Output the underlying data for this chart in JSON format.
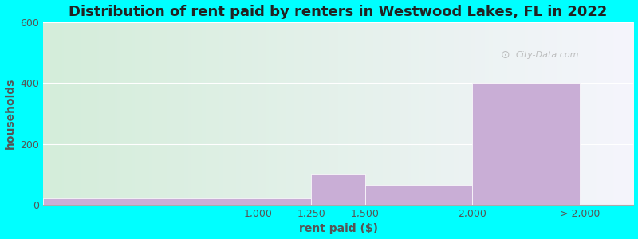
{
  "title": "Distribution of rent paid by renters in Westwood Lakes, FL in 2022",
  "xlabel": "rent paid ($)",
  "ylabel": "households",
  "bar_values": [
    20,
    20,
    100,
    65,
    400
  ],
  "bar_lefts": [
    0,
    1000,
    1250,
    1500,
    2000
  ],
  "bar_widths": [
    1000,
    250,
    250,
    500,
    500
  ],
  "bar_color": "#c9aed6",
  "xtick_positions": [
    1000,
    1250,
    1500,
    2000,
    2500
  ],
  "xtick_labels": [
    "1,000",
    "1,250",
    "1,500",
    "2,000",
    "> 2,000"
  ],
  "xlim": [
    0,
    2750
  ],
  "ylim": [
    0,
    600
  ],
  "yticks": [
    0,
    200,
    400,
    600
  ],
  "bg_color_left": "#d4edda",
  "bg_color_right": "#f5f5fc",
  "outer_bg": "#00ffff",
  "title_fontsize": 13,
  "axis_label_fontsize": 10,
  "tick_fontsize": 9,
  "watermark": "City-Data.com"
}
